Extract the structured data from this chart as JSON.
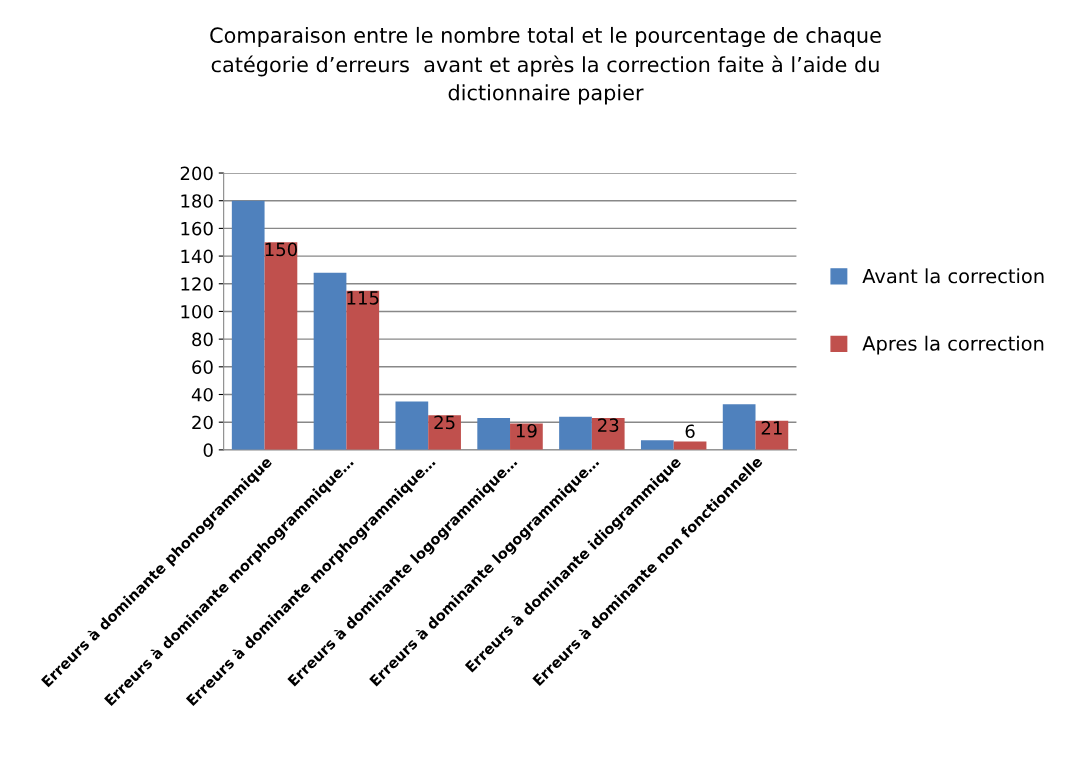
{
  "chart_data": {
    "type": "bar",
    "title": "Comparaison entre le nombre total et le pourcentage de chaque\ncatégorie d’erreurs  avant et après la correction faite à l’aide du\ndictionnaire papier",
    "categories": [
      "Erreurs à dominante phonogrammique",
      "Erreurs à dominante morphogrammique…",
      "Erreurs à dominante morphogrammique…",
      "Erreurs à dominante logogrammique…",
      "Erreurs à dominante logogrammique…",
      "Erreurs à dominante idiogrammique",
      "Erreurs à dominante non fonctionnelle"
    ],
    "series": [
      {
        "name": "Avant la correction",
        "color": "#4f81bd",
        "values": [
          180,
          128,
          35,
          23,
          24,
          7,
          33
        ]
      },
      {
        "name": "Apres la correction",
        "color": "#c0504d",
        "values": [
          150,
          115,
          25,
          19,
          23,
          6,
          21
        ],
        "value_labels": [
          "150",
          "115",
          "25",
          "19",
          "23",
          "6",
          "21"
        ]
      }
    ],
    "ylim": [
      0,
      200
    ],
    "yticks": [
      0,
      20,
      40,
      60,
      80,
      100,
      120,
      140,
      160,
      180,
      200
    ],
    "grid": "y",
    "legend": "right"
  }
}
